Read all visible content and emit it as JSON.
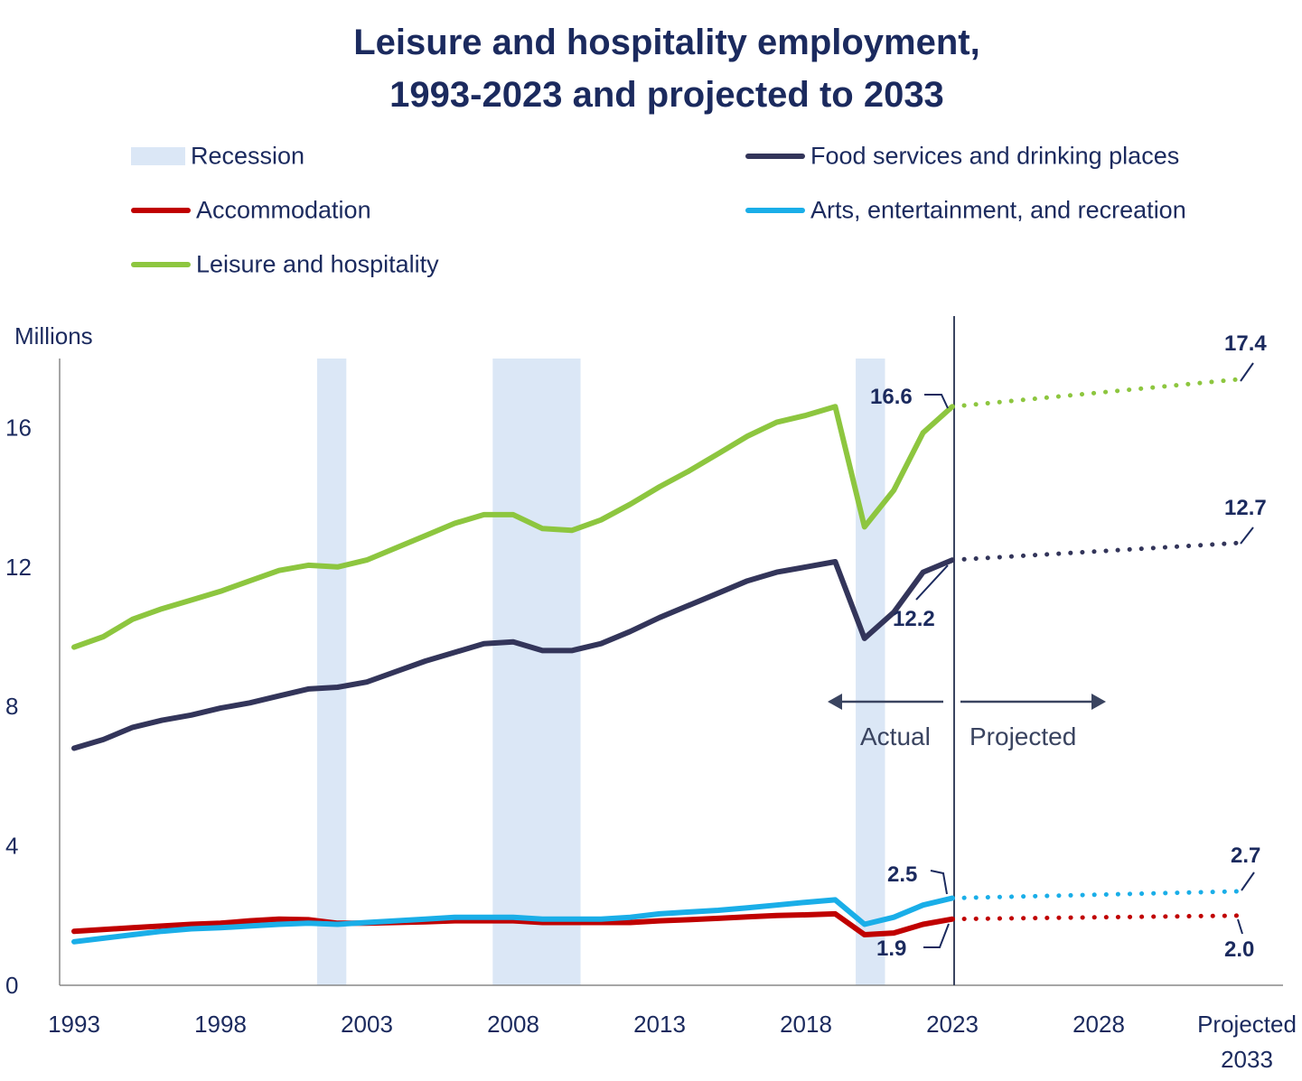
{
  "chart_data": {
    "type": "line",
    "title_line1": "Leisure and hospitality employment,",
    "title_line2": "1993-2023 and projected to 2033",
    "ylabel": "Millions",
    "ylim": [
      0,
      18
    ],
    "yticks": [
      "0",
      "4",
      "8",
      "12",
      "16"
    ],
    "xticks": [
      "1993",
      "1998",
      "2003",
      "2008",
      "2013",
      "2018",
      "2023",
      "2028"
    ],
    "xtick_projected_line1": "Projected",
    "xtick_projected_line2": "2033",
    "recessions": [
      [
        2001.3,
        2002.3
      ],
      [
        2007.3,
        2010.3
      ],
      [
        2019.7,
        2020.7
      ]
    ],
    "x": [
      1993,
      1994,
      1995,
      1996,
      1997,
      1998,
      1999,
      2000,
      2001,
      2002,
      2003,
      2004,
      2005,
      2006,
      2007,
      2008,
      2009,
      2010,
      2011,
      2012,
      2013,
      2014,
      2015,
      2016,
      2017,
      2018,
      2019,
      2020,
      2021,
      2022,
      2023
    ],
    "series": [
      {
        "name": "Leisure and hospitality",
        "color": "#8dc63f",
        "values": [
          9.7,
          10.0,
          10.5,
          10.8,
          11.05,
          11.3,
          11.6,
          11.9,
          12.05,
          12.0,
          12.2,
          12.55,
          12.9,
          13.25,
          13.5,
          13.5,
          13.1,
          13.05,
          13.35,
          13.8,
          14.3,
          14.75,
          15.25,
          15.75,
          16.15,
          16.35,
          16.6,
          13.15,
          14.2,
          15.85,
          16.6
        ],
        "projected": 17.4,
        "label_actual": "16.6",
        "label_projected": "17.4"
      },
      {
        "name": "Food services and drinking places",
        "color": "#33355a",
        "values": [
          6.8,
          7.05,
          7.4,
          7.6,
          7.75,
          7.95,
          8.1,
          8.3,
          8.5,
          8.55,
          8.7,
          9.0,
          9.3,
          9.55,
          9.8,
          9.85,
          9.6,
          9.6,
          9.8,
          10.15,
          10.55,
          10.9,
          11.25,
          11.6,
          11.85,
          12.0,
          12.15,
          9.95,
          10.7,
          11.85,
          12.2
        ],
        "projected": 12.7,
        "label_actual": "12.2",
        "label_projected": "12.7"
      },
      {
        "name": "Arts, entertainment, and recreation",
        "color": "#1aaee8",
        "values": [
          1.25,
          1.35,
          1.45,
          1.55,
          1.62,
          1.65,
          1.7,
          1.75,
          1.78,
          1.75,
          1.8,
          1.85,
          1.9,
          1.95,
          1.95,
          1.95,
          1.9,
          1.9,
          1.9,
          1.95,
          2.05,
          2.1,
          2.15,
          2.22,
          2.3,
          2.38,
          2.45,
          1.75,
          1.95,
          2.3,
          2.5
        ],
        "projected": 2.7,
        "label_actual": "2.5",
        "label_projected": "2.7"
      },
      {
        "name": "Accommodation",
        "color": "#c00000",
        "values": [
          1.55,
          1.6,
          1.65,
          1.7,
          1.75,
          1.78,
          1.85,
          1.9,
          1.88,
          1.78,
          1.78,
          1.8,
          1.82,
          1.85,
          1.85,
          1.85,
          1.8,
          1.8,
          1.8,
          1.8,
          1.85,
          1.88,
          1.92,
          1.96,
          2.0,
          2.02,
          2.05,
          1.45,
          1.5,
          1.75,
          1.9
        ],
        "projected": 2.0,
        "label_actual": "1.9",
        "label_projected": "2.0"
      }
    ],
    "annotations": {
      "actual": "Actual",
      "projected": "Projected"
    }
  },
  "legend": {
    "recession": "Recession",
    "food": "Food services and drinking places",
    "accommodation": "Accommodation",
    "arts": "Arts, entertainment, and recreation",
    "leisure": "Leisure and hospitality"
  },
  "colors": {
    "recession": "#dbe7f6",
    "axis": "#888888",
    "divider": "#3a4460"
  }
}
